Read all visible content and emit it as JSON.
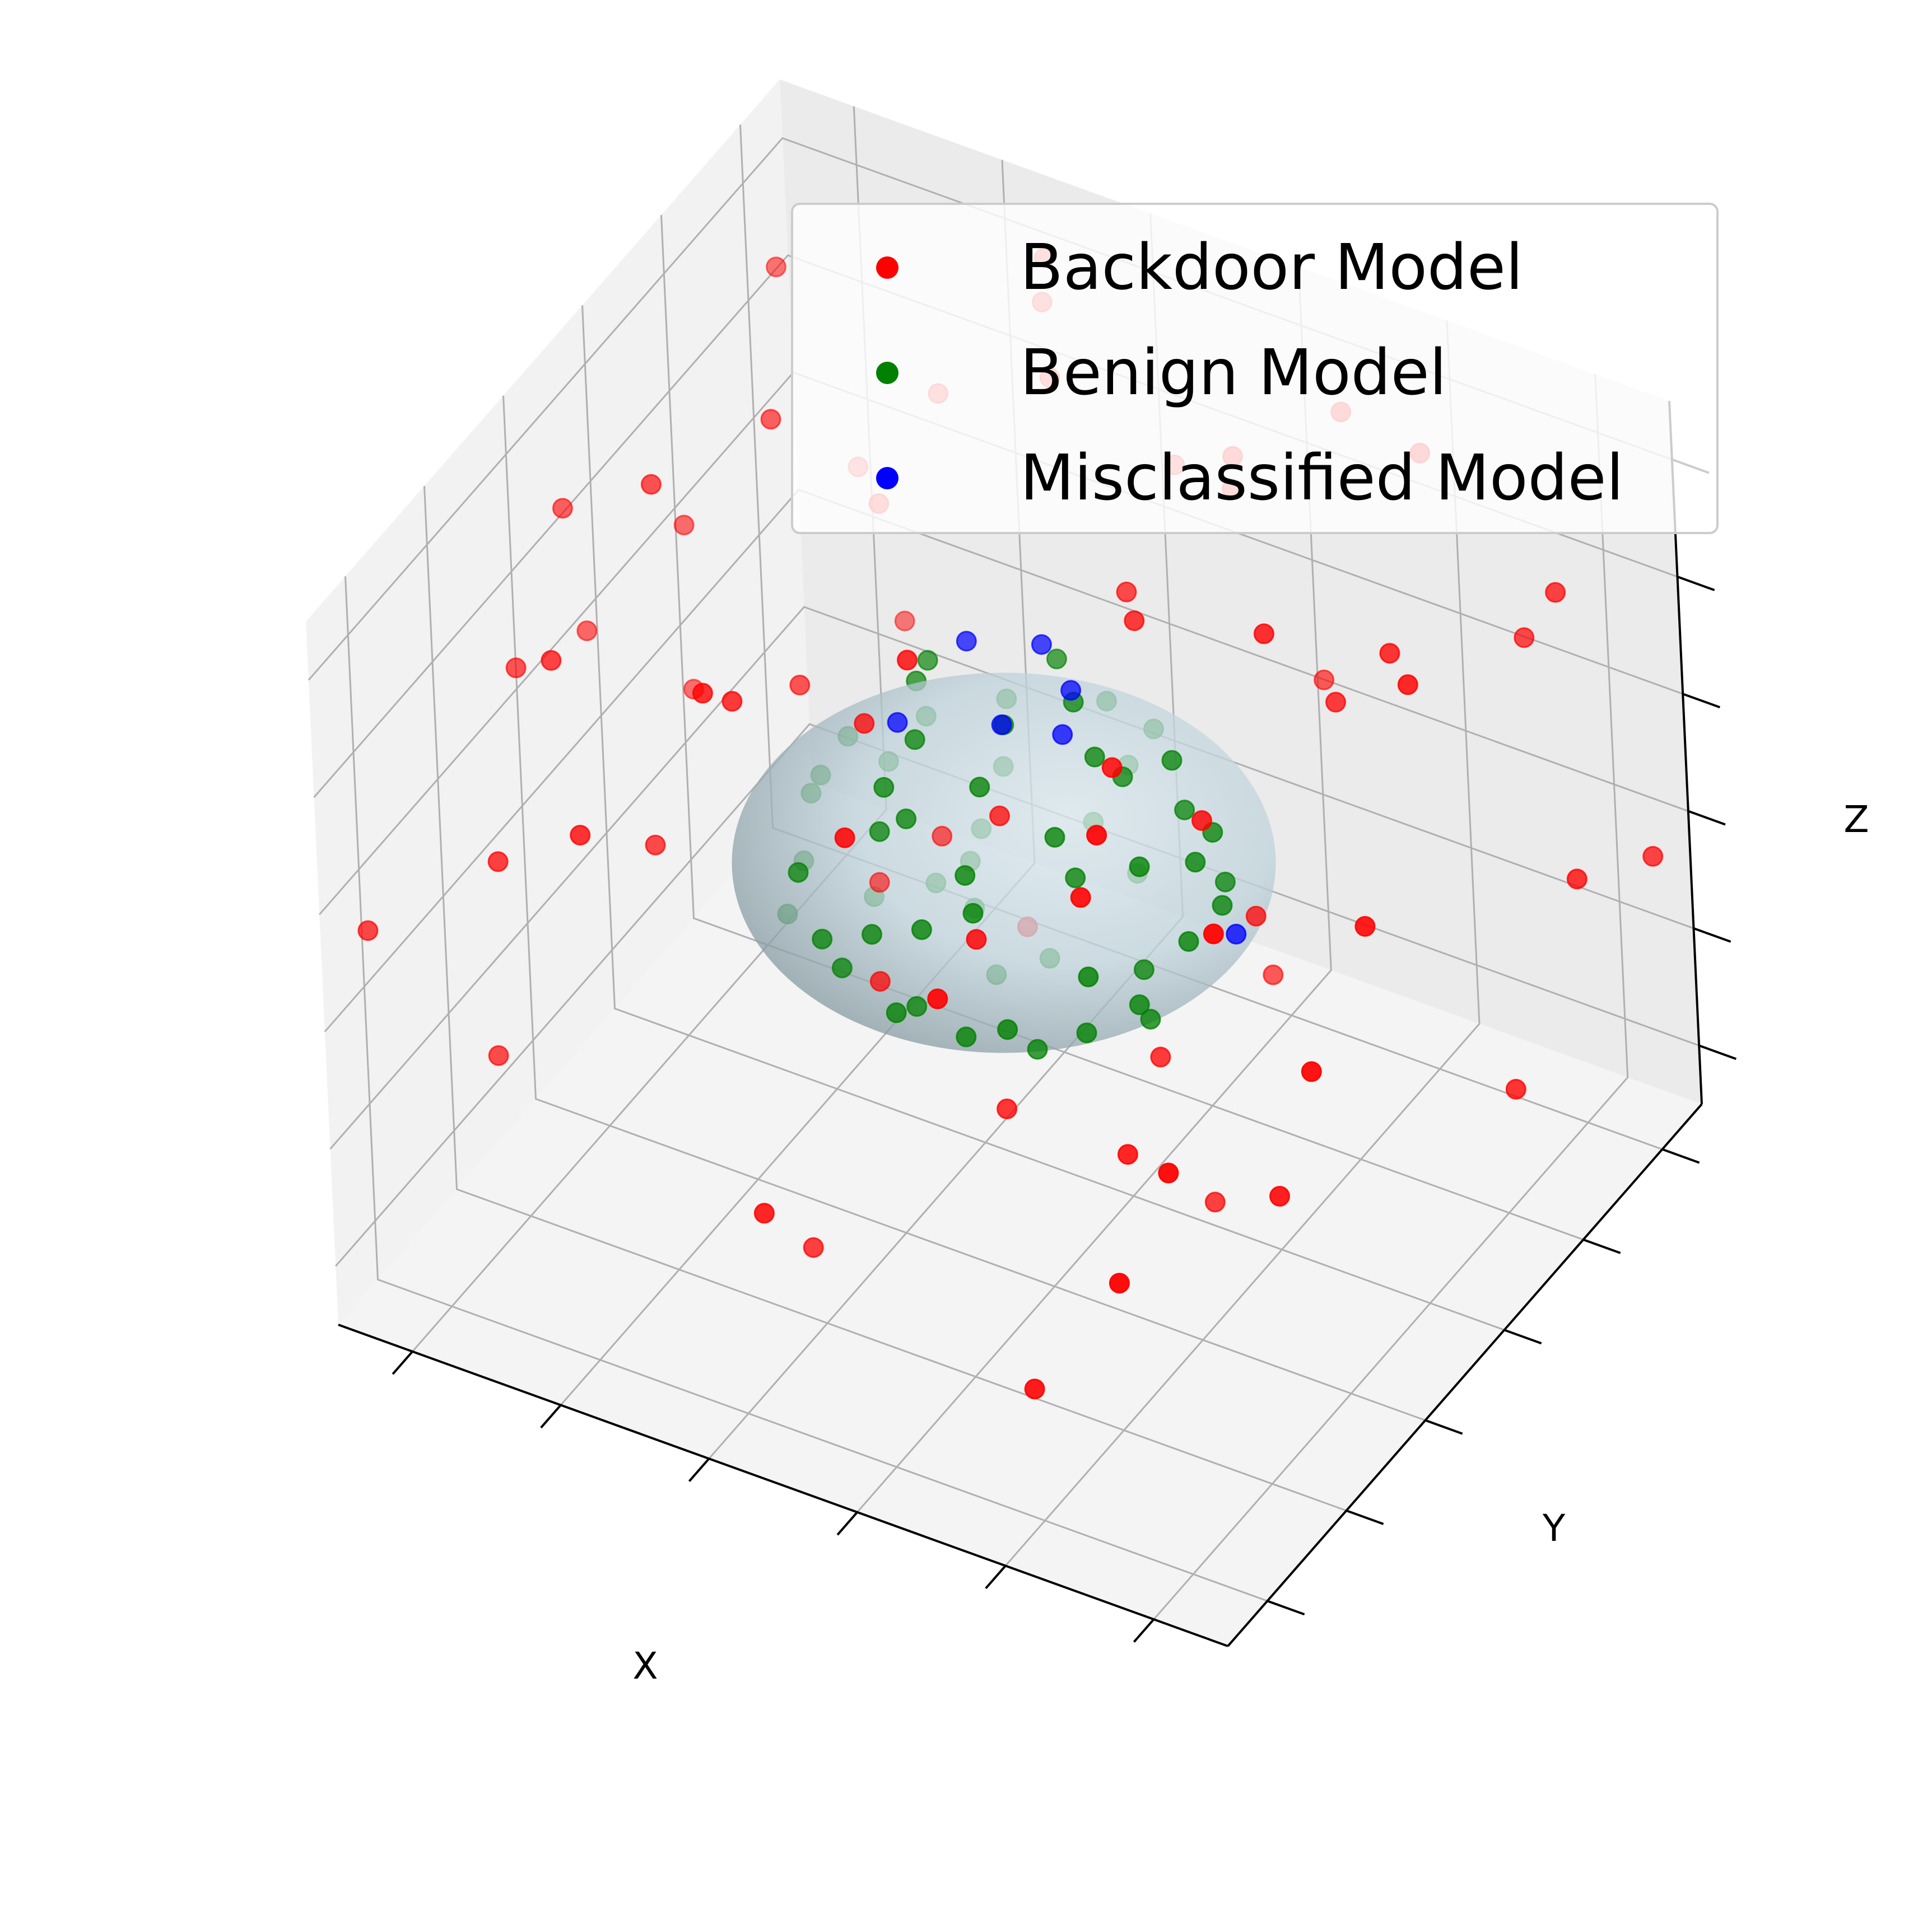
{
  "colors": {
    "backdoor": "#ff0000",
    "benign": "#008000",
    "misclassified": "#0000ff",
    "sphere": "#add8e6",
    "pane": "#f2f2f2",
    "grid": "#b0b0b0"
  },
  "legend": {
    "placement": "upper-right",
    "items": [
      {
        "label": "Backdoor Model",
        "color": "#ff0000"
      },
      {
        "label": "Benign Model",
        "color": "#008000"
      },
      {
        "label": "Misclassified Model",
        "color": "#0000ff"
      }
    ]
  },
  "chart_data": {
    "type": "scatter",
    "projection": "3d",
    "xlabel": "X",
    "ylabel": "Y",
    "zlabel": "Z",
    "tick_labels_shown": false,
    "grid": true,
    "ranges": {
      "x": [
        -3,
        3
      ],
      "y": [
        -3,
        3
      ],
      "z": [
        -3,
        3
      ]
    },
    "sphere": {
      "center": [
        0,
        0,
        0
      ],
      "radius": 1.5,
      "alpha": 0.3,
      "color": "#add8e6"
    },
    "series": [
      {
        "name": "Backdoor Model",
        "color": "#ff0000",
        "points": [
          [
            -2.4,
            1.8,
            2.6
          ],
          [
            1.9,
            -2.2,
            2.8
          ],
          [
            2.5,
            2.4,
            1.6
          ],
          [
            -1.1,
            2.7,
            2.2
          ],
          [
            0.4,
            -2.6,
            2.4
          ],
          [
            2.8,
            -0.6,
            1.2
          ],
          [
            -2.6,
            -1.2,
            1.4
          ],
          [
            1.2,
            2.2,
            2.7
          ],
          [
            -0.7,
            -2.3,
            2.9
          ],
          [
            2.2,
            0.9,
            2.1
          ],
          [
            -1.8,
            0.6,
            2.5
          ],
          [
            0.9,
            1.4,
            2.8
          ],
          [
            -2.9,
            0.2,
            0.5
          ],
          [
            2.9,
            1.8,
            -0.2
          ],
          [
            -0.3,
            2.8,
            1.1
          ],
          [
            1.6,
            -1.9,
            1.9
          ],
          [
            -2.1,
            -2.4,
            0.9
          ],
          [
            0.6,
            2.9,
            -0.4
          ],
          [
            2.4,
            -2.4,
            0.3
          ],
          [
            -1.5,
            2.1,
            1.7
          ],
          [
            1.1,
            -2.8,
            1.5
          ],
          [
            -2.7,
            1.1,
            -0.6
          ],
          [
            2.6,
            0.4,
            2.4
          ],
          [
            -0.9,
            -1.6,
            2.2
          ],
          [
            1.7,
            1.1,
            1.3
          ],
          [
            -1.3,
            -2.8,
            1.8
          ],
          [
            0.2,
            -1.4,
            2.9
          ],
          [
            2.1,
            2.7,
            0.8
          ],
          [
            -2.3,
            2.5,
            0.4
          ],
          [
            1.4,
            -1.1,
            2.3
          ],
          [
            -0.5,
            1.7,
            2.6
          ],
          [
            2.9,
            -1.5,
            0.7
          ],
          [
            -1.9,
            -0.7,
            2.9
          ],
          [
            0.8,
            0.3,
            2.2
          ],
          [
            -2.8,
            -0.2,
            1.9
          ],
          [
            1.9,
            1.9,
            2.9
          ],
          [
            -0.1,
            -2.9,
            -0.8
          ],
          [
            2.3,
            -0.9,
            -1.1
          ],
          [
            -1.6,
            1.3,
            -1.9
          ],
          [
            0.5,
            2.3,
            -2.5
          ],
          [
            -2.5,
            -1.8,
            -1.4
          ],
          [
            1.3,
            -2.2,
            -2.2
          ],
          [
            2.7,
            1.3,
            -1.7
          ],
          [
            -0.8,
            -1.1,
            -2.8
          ],
          [
            1.0,
            0.6,
            -2.9
          ],
          [
            -1.2,
            0.8,
            1.9
          ],
          [
            0.3,
            1.1,
            1.6
          ],
          [
            1.6,
            -0.4,
            1.4
          ],
          [
            -0.4,
            -0.9,
            1.7
          ],
          [
            0.7,
            -1.6,
            0.9
          ],
          [
            -1.4,
            0.1,
            0.8
          ],
          [
            1.2,
            0.9,
            -0.6
          ],
          [
            -0.6,
            -0.5,
            -0.9
          ],
          [
            0.4,
            -0.8,
            -1.3
          ],
          [
            -1.1,
            1.2,
            -1.2
          ],
          [
            0.9,
            0.2,
            -1.4
          ],
          [
            -0.2,
            0.6,
            -1.1
          ],
          [
            1.5,
            -1.3,
            -0.8
          ],
          [
            -1.7,
            -1.2,
            0.3
          ],
          [
            0.1,
            -0.2,
            0.6
          ],
          [
            2.2,
            -2.7,
            -0.5
          ],
          [
            -2.2,
            2.8,
            -1.1
          ],
          [
            2.8,
            2.9,
            -0.9
          ],
          [
            -2.9,
            -2.6,
            0.1
          ],
          [
            1.8,
            0.1,
            2.7
          ],
          [
            -0.9,
            2.4,
            2.9
          ],
          [
            2.5,
            -1.9,
            2.0
          ],
          [
            -1.9,
            -2.0,
            2.4
          ],
          [
            0.6,
            1.9,
            2.0
          ],
          [
            -2.6,
            0.9,
            1.0
          ]
        ]
      },
      {
        "name": "Benign Model",
        "color": "#008000",
        "points": [
          [
            0.9,
            0.5,
            0.9
          ],
          [
            -0.8,
            0.6,
            0.9
          ],
          [
            0.3,
            -1.0,
            0.8
          ],
          [
            -0.4,
            -0.7,
            1.0
          ],
          [
            1.1,
            -0.3,
            0.7
          ],
          [
            -1.0,
            -0.4,
            0.6
          ],
          [
            0.5,
            1.0,
            0.6
          ],
          [
            -0.2,
            1.1,
            0.8
          ],
          [
            0.7,
            -0.6,
            1.0
          ],
          [
            -0.6,
            0.1,
            1.2
          ],
          [
            1.2,
            0.2,
            0.4
          ],
          [
            -1.2,
            0.3,
            0.3
          ],
          [
            0.1,
            -1.2,
            0.4
          ],
          [
            -0.5,
            1.0,
            0.4
          ],
          [
            0.8,
            0.8,
            0.2
          ],
          [
            -0.9,
            -0.9,
            0.2
          ],
          [
            1.0,
            -0.8,
            0.1
          ],
          [
            -0.3,
            -1.1,
            0.1
          ],
          [
            0.2,
            1.2,
            0.0
          ],
          [
            -1.1,
            0.6,
            -0.1
          ],
          [
            1.2,
            0.5,
            -0.2
          ],
          [
            -0.7,
            -1.0,
            -0.2
          ],
          [
            0.6,
            -1.1,
            -0.3
          ],
          [
            -1.2,
            -0.3,
            -0.3
          ],
          [
            0.4,
            0.9,
            -0.6
          ],
          [
            -0.6,
            0.8,
            -0.6
          ],
          [
            1.0,
            -0.2,
            -0.6
          ],
          [
            -0.9,
            0.0,
            -0.7
          ],
          [
            0.2,
            -0.9,
            -0.7
          ],
          [
            -0.3,
            -0.6,
            -0.9
          ],
          [
            0.7,
            0.4,
            -0.9
          ],
          [
            -0.5,
            0.5,
            -1.0
          ],
          [
            0.4,
            -0.4,
            -1.1
          ],
          [
            -0.2,
            0.2,
            -1.2
          ],
          [
            0.1,
            -0.1,
            1.3
          ],
          [
            0.3,
            0.4,
            1.2
          ],
          [
            -0.4,
            -0.3,
            1.1
          ],
          [
            0.6,
            0.1,
            1.1
          ],
          [
            -0.7,
            0.4,
            -0.8
          ],
          [
            0.8,
            -0.5,
            -0.7
          ],
          [
            1.0,
            0.9,
            -0.4
          ],
          [
            -1.0,
            0.9,
            0.1
          ],
          [
            0.0,
            1.1,
            -0.5
          ],
          [
            -0.1,
            -1.2,
            -0.4
          ],
          [
            1.3,
            -0.1,
            0.0
          ],
          [
            -1.3,
            0.0,
            0.0
          ],
          [
            0.5,
            0.6,
            0.5
          ],
          [
            -0.5,
            -0.6,
            0.5
          ],
          [
            0.6,
            -0.2,
            0.3
          ],
          [
            -0.4,
            0.3,
            -0.4
          ],
          [
            0.9,
            0.1,
            -1.0
          ],
          [
            -0.8,
            -0.6,
            -0.8
          ],
          [
            0.3,
            0.8,
            0.9
          ],
          [
            -0.2,
            -0.8,
            0.9
          ],
          [
            1.1,
            0.6,
            0.3
          ],
          [
            -1.1,
            -0.7,
            -0.4
          ],
          [
            0.4,
            -1.1,
            0.6
          ],
          [
            -0.6,
            1.1,
            -0.3
          ],
          [
            0.0,
            0.5,
            -1.2
          ],
          [
            0.2,
            -0.6,
            1.2
          ]
        ]
      },
      {
        "name": "Misclassified Model",
        "color": "#0000ff",
        "points": [
          [
            -0.3,
            0.2,
            1.6
          ],
          [
            0.1,
            0.4,
            1.6
          ],
          [
            0.4,
            0.2,
            1.5
          ],
          [
            0.5,
            -0.1,
            1.4
          ],
          [
            -0.4,
            -0.5,
            1.4
          ],
          [
            0.2,
            -0.3,
            1.5
          ],
          [
            1.4,
            0.3,
            -0.2
          ]
        ]
      }
    ]
  }
}
